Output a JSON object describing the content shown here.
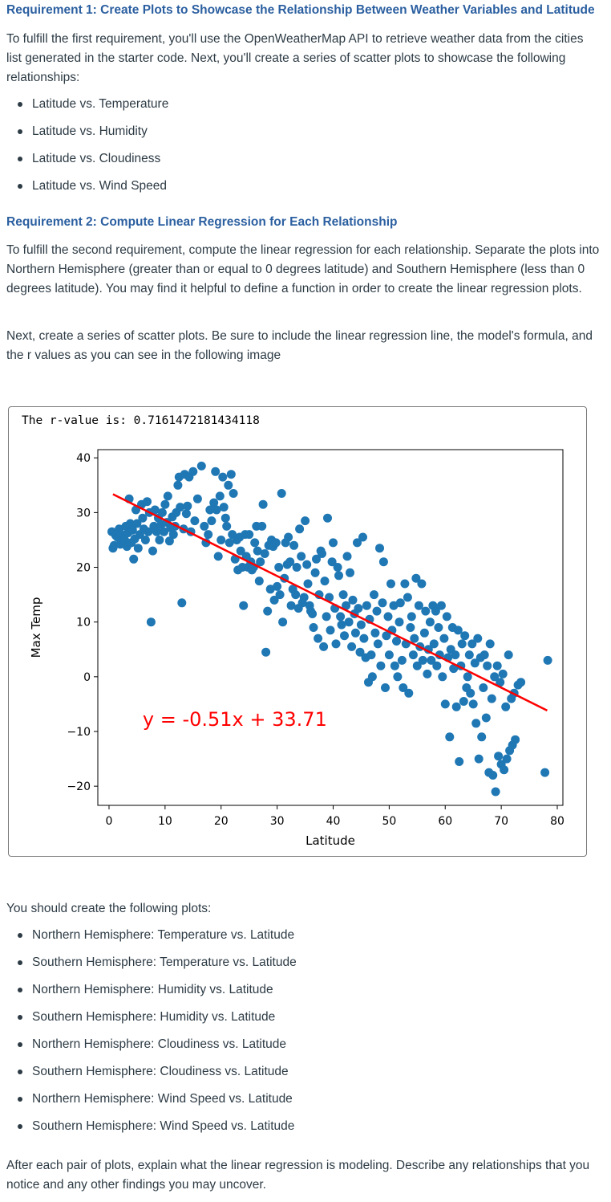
{
  "requirement1": {
    "heading": "Requirement 1: Create Plots to Showcase the Relationship Between Weather Variables and Latitude",
    "intro": "To fulfill the first requirement, you'll use the OpenWeatherMap API to retrieve weather data from the cities list generated in the starter code. Next, you'll create a series of scatter plots to showcase the following relationships:",
    "items": [
      "Latitude vs. Temperature",
      "Latitude vs. Humidity",
      "Latitude vs. Cloudiness",
      "Latitude vs. Wind Speed"
    ]
  },
  "requirement2": {
    "heading": "Requirement 2: Compute Linear Regression for Each Relationship",
    "para1": "To fulfill the second requirement, compute the linear regression for each relationship. Separate the plots into Northern Hemisphere (greater than or equal to 0 degrees latitude) and Southern Hemisphere (less than 0 degrees latitude). You may find it helpful to define a function in order to create the linear regression plots.",
    "para2": "Next, create a series of scatter plots. Be sure to include the linear regression line, the model's formula, and the r values as you can see in the following image"
  },
  "figure": {
    "rvalue_text": "The r-value is: 0.7161472181434118"
  },
  "chart_data": {
    "type": "scatter",
    "title": "",
    "xlabel": "Latitude",
    "ylabel": "Max Temp",
    "xlim": [
      -2,
      81
    ],
    "ylim": [
      -23.5,
      41.5
    ],
    "xticks": [
      0,
      10,
      20,
      30,
      40,
      50,
      60,
      70,
      80
    ],
    "yticks": [
      -20,
      -10,
      0,
      10,
      20,
      30,
      40
    ],
    "point_color": "#1f77b4",
    "regression": {
      "slope": -0.51,
      "intercept": 33.71,
      "color": "#ff0000",
      "x_range": [
        0.7,
        78.2
      ]
    },
    "equation_label": "y = -0.51x + 33.71",
    "equation_position_data": [
      6,
      -9
    ],
    "grid": false,
    "legend": "none",
    "points": [
      [
        0.5,
        26.5
      ],
      [
        0.7,
        23.5
      ],
      [
        0.9,
        24
      ],
      [
        1.2,
        25.8
      ],
      [
        1.5,
        25.5
      ],
      [
        1.8,
        27
      ],
      [
        2,
        24.2
      ],
      [
        2.2,
        26
      ],
      [
        2.5,
        24.5
      ],
      [
        2.8,
        25
      ],
      [
        3,
        27.5
      ],
      [
        3.2,
        23.8
      ],
      [
        3.4,
        26.3
      ],
      [
        3.6,
        32.5
      ],
      [
        3.8,
        28
      ],
      [
        4,
        24.5
      ],
      [
        4.2,
        26.8
      ],
      [
        4.4,
        21.5
      ],
      [
        4.6,
        25.2
      ],
      [
        4.8,
        30.5
      ],
      [
        5,
        28
      ],
      [
        5.2,
        23.5
      ],
      [
        5.5,
        26
      ],
      [
        5.8,
        31.5
      ],
      [
        6,
        29
      ],
      [
        6.2,
        27
      ],
      [
        6.5,
        25
      ],
      [
        6.8,
        32
      ],
      [
        7,
        26.5
      ],
      [
        7.2,
        30
      ],
      [
        7.5,
        10
      ],
      [
        7.8,
        23
      ],
      [
        8,
        27.5
      ],
      [
        8.2,
        30.5
      ],
      [
        8.5,
        26.5
      ],
      [
        8.8,
        29
      ],
      [
        9,
        25
      ],
      [
        9.3,
        27.8
      ],
      [
        9.5,
        30
      ],
      [
        9.8,
        26.5
      ],
      [
        10,
        31.5
      ],
      [
        10.3,
        28.2
      ],
      [
        10.5,
        33
      ],
      [
        10.8,
        24.8
      ],
      [
        11,
        27.2
      ],
      [
        11.3,
        29.2
      ],
      [
        11.5,
        26
      ],
      [
        11.8,
        27.5
      ],
      [
        12,
        30
      ],
      [
        12.3,
        35
      ],
      [
        12.5,
        36.5
      ],
      [
        12.7,
        31
      ],
      [
        13,
        13.5
      ],
      [
        13.3,
        27
      ],
      [
        13.5,
        37
      ],
      [
        13.8,
        29.8
      ],
      [
        14,
        31.2
      ],
      [
        14.3,
        36.5
      ],
      [
        14.6,
        26.5
      ],
      [
        15,
        37.5
      ],
      [
        15.3,
        28.5
      ],
      [
        15.8,
        32.5
      ],
      [
        16.5,
        38.5
      ],
      [
        17,
        27.5
      ],
      [
        17.3,
        24.5
      ],
      [
        17.7,
        26
      ],
      [
        18,
        30.5
      ],
      [
        18.3,
        28.5
      ],
      [
        18.7,
        31.8
      ],
      [
        19,
        37.5
      ],
      [
        19.2,
        30.5
      ],
      [
        19.5,
        22
      ],
      [
        19.8,
        33
      ],
      [
        20,
        25
      ],
      [
        20.3,
        36.5
      ],
      [
        20.5,
        31
      ],
      [
        20.8,
        29
      ],
      [
        21,
        27.5
      ],
      [
        21.3,
        35
      ],
      [
        21.5,
        24.5
      ],
      [
        21.8,
        37
      ],
      [
        22,
        26
      ],
      [
        22.2,
        33.5
      ],
      [
        22.5,
        21.5
      ],
      [
        22.8,
        25
      ],
      [
        23,
        19.5
      ],
      [
        23.3,
        25.5
      ],
      [
        23.5,
        23
      ],
      [
        23.8,
        20
      ],
      [
        24,
        13
      ],
      [
        24.3,
        26
      ],
      [
        24.5,
        22
      ],
      [
        24.8,
        20
      ],
      [
        25,
        26
      ],
      [
        25.3,
        21
      ],
      [
        25.5,
        19.5
      ],
      [
        25.8,
        20
      ],
      [
        26,
        24.5
      ],
      [
        26.3,
        27.5
      ],
      [
        26.5,
        23
      ],
      [
        26.8,
        17.5
      ],
      [
        27,
        21
      ],
      [
        27.3,
        27.5
      ],
      [
        27.5,
        31.5
      ],
      [
        27.8,
        22.5
      ],
      [
        28,
        4.5
      ],
      [
        28.3,
        12
      ],
      [
        28.5,
        24
      ],
      [
        28.8,
        16
      ],
      [
        29,
        25
      ],
      [
        29.3,
        23.8
      ],
      [
        29.5,
        14
      ],
      [
        29.8,
        24.5
      ],
      [
        30,
        16.5
      ],
      [
        30.3,
        20
      ],
      [
        30.5,
        15
      ],
      [
        30.8,
        33.5
      ],
      [
        31,
        10
      ],
      [
        31.3,
        18
      ],
      [
        31.5,
        24.5
      ],
      [
        31.8,
        20.5
      ],
      [
        32,
        25.5
      ],
      [
        32.3,
        21
      ],
      [
        32.5,
        13
      ],
      [
        32.8,
        16
      ],
      [
        33,
        24
      ],
      [
        33.3,
        15
      ],
      [
        33.5,
        20
      ],
      [
        33.8,
        12.5
      ],
      [
        34,
        27
      ],
      [
        34.3,
        22
      ],
      [
        34.5,
        13.5
      ],
      [
        34.8,
        14.5
      ],
      [
        35,
        28.5
      ],
      [
        35.3,
        20.5
      ],
      [
        35.5,
        17
      ],
      [
        35.8,
        13
      ],
      [
        36,
        12
      ],
      [
        36.3,
        11.5
      ],
      [
        36.5,
        9
      ],
      [
        36.8,
        19
      ],
      [
        37,
        21.5
      ],
      [
        37.3,
        7
      ],
      [
        37.5,
        15
      ],
      [
        37.8,
        23
      ],
      [
        38,
        22.5
      ],
      [
        38.3,
        5.5
      ],
      [
        38.5,
        17.5
      ],
      [
        38.8,
        11
      ],
      [
        39,
        29
      ],
      [
        39.3,
        14.5
      ],
      [
        39.5,
        8.5
      ],
      [
        39.8,
        21
      ],
      [
        40,
        24.5
      ],
      [
        40.3,
        12.5
      ],
      [
        40.5,
        6
      ],
      [
        40.8,
        20
      ],
      [
        41,
        18.5
      ],
      [
        41.3,
        11
      ],
      [
        41.5,
        9.5
      ],
      [
        41.8,
        15
      ],
      [
        42,
        7.5
      ],
      [
        42.3,
        13
      ],
      [
        42.5,
        22
      ],
      [
        42.8,
        10
      ],
      [
        43,
        19
      ],
      [
        43.3,
        5.5
      ],
      [
        43.5,
        14
      ],
      [
        43.8,
        11.5
      ],
      [
        44,
        8
      ],
      [
        44.3,
        24.5
      ],
      [
        44.5,
        12.5
      ],
      [
        44.8,
        4.5
      ],
      [
        45,
        9.5
      ],
      [
        45.3,
        25.5
      ],
      [
        45.5,
        7
      ],
      [
        45.8,
        3.5
      ],
      [
        46,
        13
      ],
      [
        46.3,
        -1
      ],
      [
        46.5,
        10.5
      ],
      [
        46.8,
        4
      ],
      [
        47,
        0
      ],
      [
        47.3,
        15
      ],
      [
        47.5,
        8
      ],
      [
        47.8,
        12
      ],
      [
        48,
        6
      ],
      [
        48.3,
        23.5
      ],
      [
        48.5,
        2
      ],
      [
        48.8,
        13.5
      ],
      [
        49,
        21
      ],
      [
        49.3,
        -2
      ],
      [
        49.5,
        7.5
      ],
      [
        49.8,
        11
      ],
      [
        50,
        4
      ],
      [
        50.3,
        17
      ],
      [
        50.5,
        8.5
      ],
      [
        50.8,
        13
      ],
      [
        51,
        2
      ],
      [
        51.3,
        6.5
      ],
      [
        51.5,
        0
      ],
      [
        51.8,
        10
      ],
      [
        52,
        13.5
      ],
      [
        52.3,
        3
      ],
      [
        52.5,
        -2
      ],
      [
        52.8,
        17
      ],
      [
        53,
        6
      ],
      [
        53.3,
        14.5
      ],
      [
        53.5,
        -3
      ],
      [
        53.8,
        9
      ],
      [
        54,
        11
      ],
      [
        54.3,
        4
      ],
      [
        54.5,
        7
      ],
      [
        54.8,
        18
      ],
      [
        55,
        2
      ],
      [
        55.3,
        13
      ],
      [
        55.5,
        5.5
      ],
      [
        55.8,
        17
      ],
      [
        56,
        3
      ],
      [
        56.3,
        8
      ],
      [
        56.5,
        12
      ],
      [
        56.8,
        0.5
      ],
      [
        57,
        5
      ],
      [
        57.3,
        10
      ],
      [
        57.5,
        3
      ],
      [
        57.8,
        13
      ],
      [
        58,
        6
      ],
      [
        58.3,
        12
      ],
      [
        58.5,
        2
      ],
      [
        58.8,
        9
      ],
      [
        59,
        4
      ],
      [
        59.3,
        13
      ],
      [
        59.5,
        0
      ],
      [
        59.8,
        7
      ],
      [
        60,
        -5
      ],
      [
        60.3,
        11
      ],
      [
        60.5,
        3.5
      ],
      [
        60.8,
        -11
      ],
      [
        61,
        5
      ],
      [
        61.3,
        9
      ],
      [
        61.5,
        1.5
      ],
      [
        61.8,
        4
      ],
      [
        62,
        -5.5
      ],
      [
        62.3,
        8.5
      ],
      [
        62.5,
        -15.5
      ],
      [
        62.8,
        2
      ],
      [
        63,
        6
      ],
      [
        63.3,
        -4.5
      ],
      [
        63.5,
        7.5
      ],
      [
        63.8,
        -2
      ],
      [
        64,
        0
      ],
      [
        64.3,
        4
      ],
      [
        64.5,
        -3
      ],
      [
        64.8,
        6
      ],
      [
        65,
        -5
      ],
      [
        65.3,
        2.5
      ],
      [
        65.5,
        -8.5
      ],
      [
        65.8,
        7
      ],
      [
        66,
        -15
      ],
      [
        66.3,
        3.5
      ],
      [
        66.5,
        -11
      ],
      [
        66.8,
        -2
      ],
      [
        67,
        4
      ],
      [
        67.3,
        -7.5
      ],
      [
        67.5,
        2
      ],
      [
        67.8,
        -17.5
      ],
      [
        68,
        6
      ],
      [
        68.3,
        -4
      ],
      [
        68.5,
        -18
      ],
      [
        68.8,
        0
      ],
      [
        69,
        -21
      ],
      [
        69.3,
        2
      ],
      [
        69.5,
        -14.5
      ],
      [
        69.8,
        -1
      ],
      [
        70,
        -16
      ],
      [
        70.3,
        0.5
      ],
      [
        70.5,
        -17
      ],
      [
        70.8,
        -5.5
      ],
      [
        71,
        -15
      ],
      [
        71.3,
        4
      ],
      [
        71.5,
        -13.5
      ],
      [
        71.8,
        -4
      ],
      [
        72,
        -12.5
      ],
      [
        72.3,
        -3
      ],
      [
        72.5,
        -11.5
      ],
      [
        73,
        -1.5
      ],
      [
        73.5,
        -1
      ],
      [
        77.8,
        -17.5
      ],
      [
        78.3,
        3
      ]
    ]
  }
}
